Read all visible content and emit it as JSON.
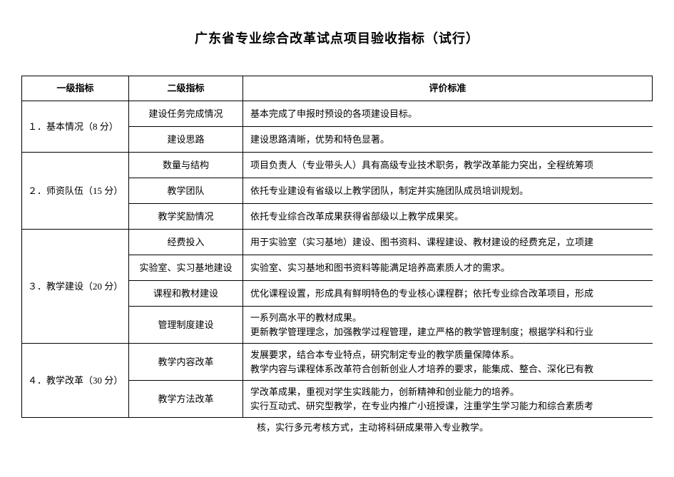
{
  "title": "广东省专业综合改革试点项目验收指标（试行）",
  "headers": {
    "col1": "一级指标",
    "col2": "二级指标",
    "col3": "评价标准"
  },
  "sections": [
    {
      "level1": "１．基本情况（8 分）",
      "rows": [
        {
          "level2": "建设任务完成情况",
          "criteria": "基本完成了申报时预设的各项建设目标。"
        },
        {
          "level2": "建设思路",
          "criteria": "建设思路清晰，优势和特色显著。"
        }
      ]
    },
    {
      "level1": "２．师资队伍（15 分）",
      "rows": [
        {
          "level2": "数量与结构",
          "criteria": "项目负责人（专业带头人）具有高级专业技术职务，教学改革能力突出，全程统筹项"
        },
        {
          "level2": "教学团队",
          "criteria": "依托专业建设有省级以上教学团队，制定并实施团队成员培训规划。"
        },
        {
          "level2": "教学奖励情况",
          "criteria": "依托专业综合改革成果获得省部级以上教学成果奖。"
        }
      ]
    },
    {
      "level1": "３．教学建设（20 分）",
      "rows": [
        {
          "level2": "经费投入",
          "criteria": "用于实验室（实习基地）建设、图书资料、课程建设、教材建设的经费充足，立项建"
        },
        {
          "level2": "实验室、实习基地建设",
          "criteria": "实验室、实习基地和图书资料等能满足培养高素质人才的需求。"
        },
        {
          "level2": "课程和教材建设",
          "criteria": "优化课程设置，形成具有鲜明特色的专业核心课程群；依托专业综合改革项目，形成"
        },
        {
          "level2": "管理制度建设",
          "criteria": "一系列高水平的教材成果。\n更新教学管理理念，加强教学过程管理，建立严格的教学管理制度；根据学科和行业"
        }
      ]
    },
    {
      "level1": "４．教学改革（30 分）",
      "rows": [
        {
          "level2": "教学内容改革",
          "criteria": "发展要求，结合本专业特点，研究制定专业的教学质量保障体系。\n教学内容与课程体系改革符合创新创业人才培养的要求，能集成、整合、深化已有教"
        },
        {
          "level2": "教学方法改革",
          "criteria": "学改革成果，重视对学生实践能力，创新精神和创业能力的培养。\n实行互动式、研究型教学，在专业内推广小班授课，注重学生学习能力和综合素质考"
        }
      ]
    }
  ],
  "overflow": "核，实行多元考核方式，主动将科研成果带入专业教学。"
}
